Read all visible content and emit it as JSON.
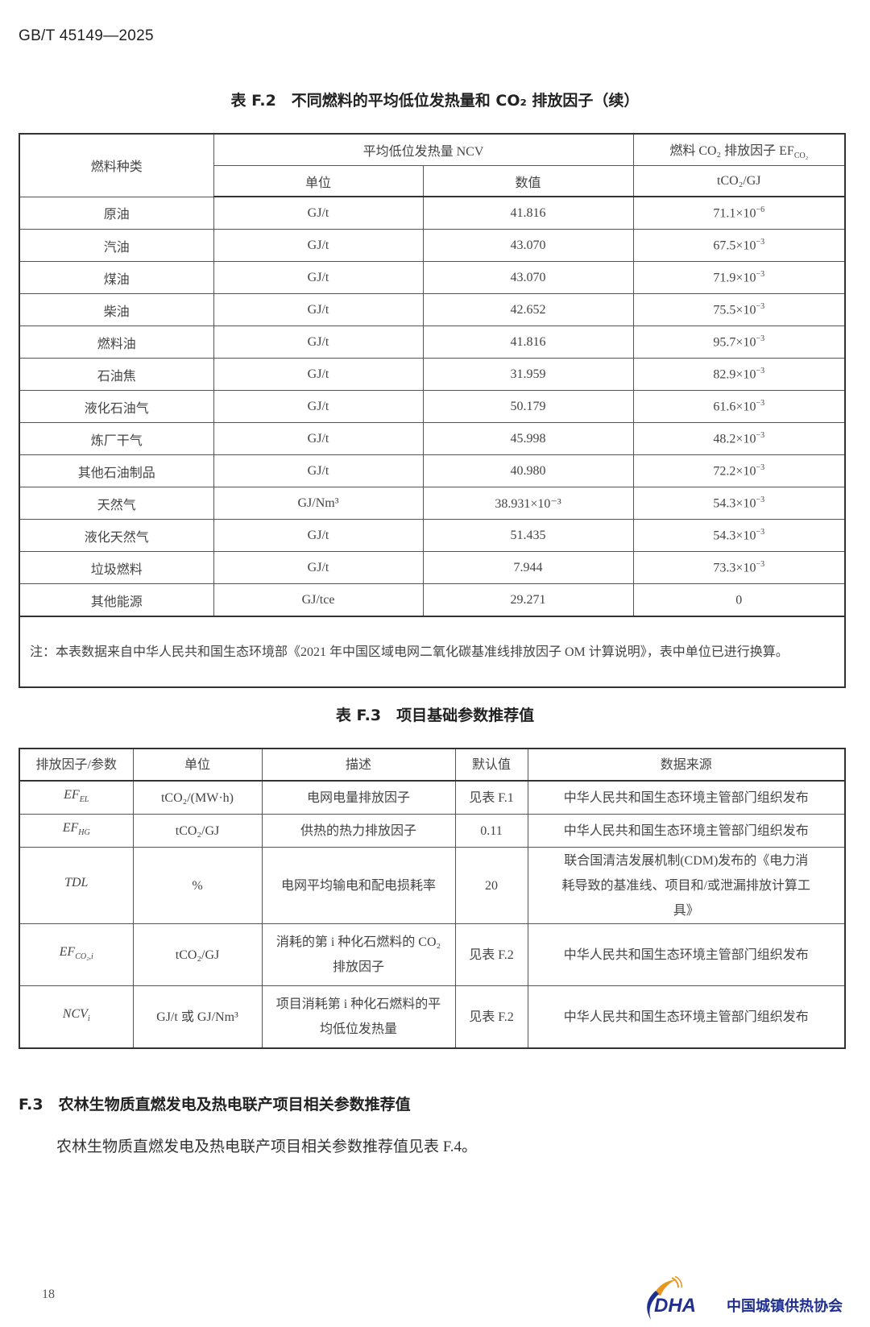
{
  "header": {
    "doc_code": "GB/T 45149—2025"
  },
  "table_f2": {
    "caption": "表 F.2　不同燃料的平均低位发热量和 CO₂ 排放因子（续）",
    "headers": {
      "fuel_type": "燃料种类",
      "ncv_group": "平均低位发热量 NCV",
      "unit": "单位",
      "value": "数值",
      "ef_title": "燃料 CO₂ 排放因子 EF",
      "ef_sub": "CO₂",
      "ef_unit": "tCO₂/GJ"
    },
    "rows": [
      {
        "fuel": "原油",
        "unit": "GJ/t",
        "ncv": "41.816",
        "ef": "71.1×10",
        "exp": "−6"
      },
      {
        "fuel": "汽油",
        "unit": "GJ/t",
        "ncv": "43.070",
        "ef": "67.5×10",
        "exp": "−3"
      },
      {
        "fuel": "煤油",
        "unit": "GJ/t",
        "ncv": "43.070",
        "ef": "71.9×10",
        "exp": "−3"
      },
      {
        "fuel": "柴油",
        "unit": "GJ/t",
        "ncv": "42.652",
        "ef": "75.5×10",
        "exp": "−3"
      },
      {
        "fuel": "燃料油",
        "unit": "GJ/t",
        "ncv": "41.816",
        "ef": "95.7×10",
        "exp": "−3"
      },
      {
        "fuel": "石油焦",
        "unit": "GJ/t",
        "ncv": "31.959",
        "ef": "82.9×10",
        "exp": "−3"
      },
      {
        "fuel": "液化石油气",
        "unit": "GJ/t",
        "ncv": "50.179",
        "ef": "61.6×10",
        "exp": "−3"
      },
      {
        "fuel": "炼厂干气",
        "unit": "GJ/t",
        "ncv": "45.998",
        "ef": "48.2×10",
        "exp": "−3"
      },
      {
        "fuel": "其他石油制品",
        "unit": "GJ/t",
        "ncv": "40.980",
        "ef": "72.2×10",
        "exp": "−3"
      },
      {
        "fuel": "天然气",
        "unit": "GJ/Nm³",
        "ncv": "38.931×10⁻³",
        "ef": "54.3×10",
        "exp": "−3"
      },
      {
        "fuel": "液化天然气",
        "unit": "GJ/t",
        "ncv": "51.435",
        "ef": "54.3×10",
        "exp": "−3"
      },
      {
        "fuel": "垃圾燃料",
        "unit": "GJ/t",
        "ncv": "7.944",
        "ef": "73.3×10",
        "exp": "−3"
      },
      {
        "fuel": "其他能源",
        "unit": "GJ/tce",
        "ncv": "29.271",
        "ef": "0",
        "exp": ""
      }
    ],
    "note": "注：本表数据来自中华人民共和国生态环境部《2021 年中国区域电网二氧化碳基准线排放因子 OM 计算说明》，表中单位已进行换算。"
  },
  "table_f3": {
    "caption": "表 F.3　项目基础参数推荐值",
    "headers": [
      "排放因子/参数",
      "单位",
      "描述",
      "默认值",
      "数据来源"
    ],
    "rows": [
      {
        "param": "EF",
        "param_sub": "EL",
        "unit": "tCO₂/(MW·h)",
        "desc": "电网电量排放因子",
        "default": "见表 F.1",
        "source": "中华人民共和国生态环境主管部门组织发布"
      },
      {
        "param": "EF",
        "param_sub": "HG",
        "unit": "tCO₂/GJ",
        "desc": "供热的热力排放因子",
        "default": "0.11",
        "source": "中华人民共和国生态环境主管部门组织发布"
      },
      {
        "param": "TDL",
        "param_sub": "",
        "unit": "%",
        "desc": "电网平均输电和配电损耗率",
        "default": "20",
        "source": "联合国清洁发展机制(CDM)发布的《电力消耗导致的基准线、项目和/或泄漏排放计算工具》"
      },
      {
        "param": "EF",
        "param_sub": "CO₂,i",
        "unit": "tCO₂/GJ",
        "desc": "消耗的第 i 种化石燃料的 CO₂ 排放因子",
        "default": "见表 F.2",
        "source": "中华人民共和国生态环境主管部门组织发布"
      },
      {
        "param": "NCV",
        "param_sub": "i",
        "unit": "GJ/t 或 GJ/Nm³",
        "desc": "项目消耗第 i 种化石燃料的平均低位发热量",
        "default": "见表 F.2",
        "source": "中华人民共和国生态环境主管部门组织发布"
      }
    ]
  },
  "section_f3": {
    "heading": "F.3　农林生物质直燃发电及热电联产项目相关参数推荐值",
    "paragraph": "农林生物质直燃发电及热电联产项目相关参数推荐值见表 F.4。"
  },
  "footer": {
    "page_number": "18",
    "logo_text": "CDHA 中国城镇供热协会",
    "logo_colors": {
      "blue": "#1f2f8f",
      "orange": "#e8961e"
    }
  }
}
